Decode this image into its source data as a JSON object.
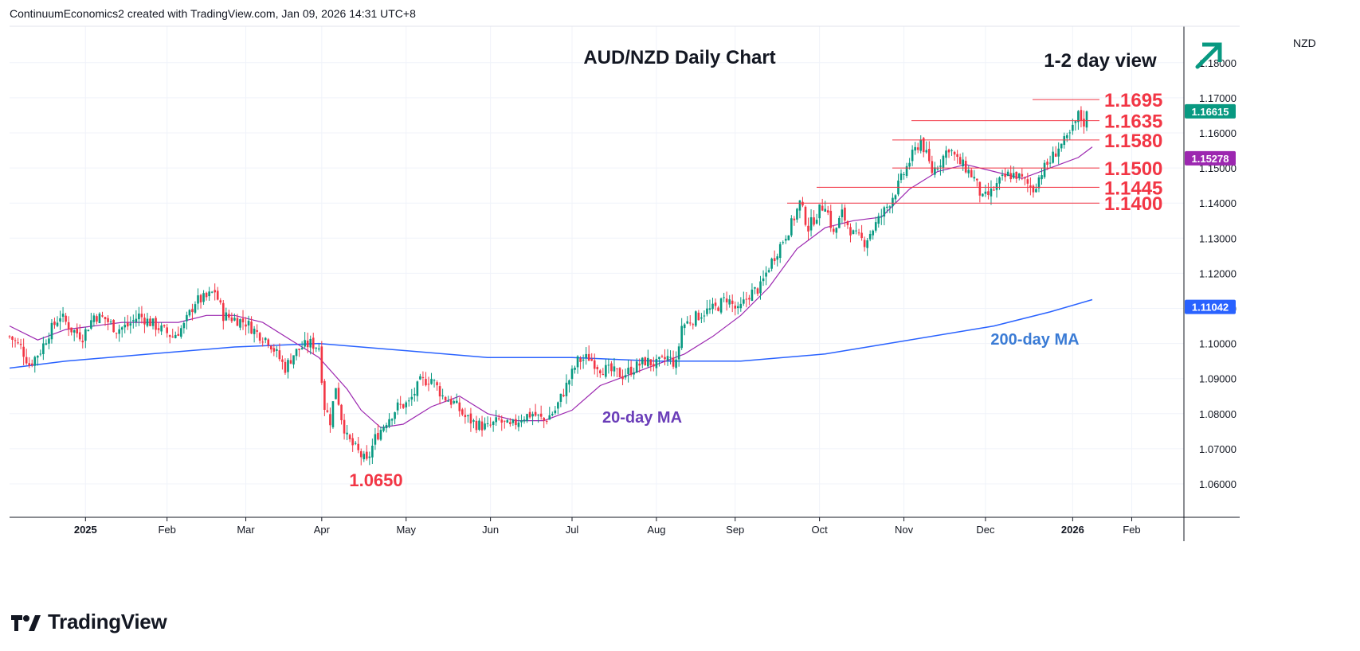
{
  "header": {
    "credit": "ContinuumEconomics2 created with TradingView.com, Jan 09, 2026 14:31 UTC+8"
  },
  "footer": {
    "brand": "TradingView"
  },
  "colors": {
    "up": "#089981",
    "down": "#f23645",
    "ma20": "#9c27b0",
    "ma200": "#2962ff",
    "level_text": "#f23645",
    "arrow": "#089981"
  },
  "chart_data": {
    "type": "candlestick",
    "title": "AUD/NZD Daily Chart",
    "view_label": "1-2 day view",
    "view_direction": "up",
    "currency": "NZD",
    "ylim": [
      1.05,
      1.185
    ],
    "y_ticks": [
      "1.06000",
      "1.07000",
      "1.08000",
      "1.09000",
      "1.10000",
      "1.11000",
      "1.12000",
      "1.13000",
      "1.14000",
      "1.15000",
      "1.16000",
      "1.17000",
      "1.18000"
    ],
    "x_ticks": [
      "2025",
      "Feb",
      "Mar",
      "Apr",
      "May",
      "Jun",
      "Jul",
      "Aug",
      "Sep",
      "Oct",
      "Nov",
      "Dec",
      "2026",
      "Feb"
    ],
    "price_tags": [
      {
        "label": "1.16615",
        "value": 1.16615,
        "color": "#089981"
      },
      {
        "label": "1.15278",
        "value": 1.15278,
        "color": "#9c27b0"
      },
      {
        "label": "1.11042",
        "value": 1.11042,
        "color": "#2962ff"
      }
    ],
    "levels": [
      {
        "label": "1.1695",
        "value": 1.1695
      },
      {
        "label": "1.1635",
        "value": 1.1635
      },
      {
        "label": "1.1580",
        "value": 1.158
      },
      {
        "label": "1.1500",
        "value": 1.15
      },
      {
        "label": "1.1445",
        "value": 1.1445
      },
      {
        "label": "1.1400",
        "value": 1.14
      }
    ],
    "low_annotation": {
      "label": "1.0650",
      "value": 1.065
    },
    "ma_labels": {
      "ma20": "20-day MA",
      "ma200": "200-day MA"
    },
    "close_path": [
      [
        0,
        1.102
      ],
      [
        4,
        1.099
      ],
      [
        7,
        1.094
      ],
      [
        11,
        1.098
      ],
      [
        14,
        1.103
      ],
      [
        18,
        1.108
      ],
      [
        22,
        1.104
      ],
      [
        26,
        1.102
      ],
      [
        30,
        1.108
      ],
      [
        34,
        1.107
      ],
      [
        38,
        1.104
      ],
      [
        42,
        1.105
      ],
      [
        46,
        1.108
      ],
      [
        50,
        1.106
      ],
      [
        54,
        1.104
      ],
      [
        58,
        1.102
      ],
      [
        62,
        1.105
      ],
      [
        66,
        1.112
      ],
      [
        70,
        1.113
      ],
      [
        73,
        1.115
      ],
      [
        76,
        1.108
      ],
      [
        80,
        1.107
      ],
      [
        84,
        1.106
      ],
      [
        88,
        1.103
      ],
      [
        92,
        1.101
      ],
      [
        95,
        1.097
      ],
      [
        98,
        1.093
      ],
      [
        101,
        1.097
      ],
      [
        104,
        1.099
      ],
      [
        107,
        1.1
      ],
      [
        110,
        1.099
      ],
      [
        112,
        1.082
      ],
      [
        114,
        1.078
      ],
      [
        116,
        1.088
      ],
      [
        118,
        1.079
      ],
      [
        120,
        1.073
      ],
      [
        122,
        1.071
      ],
      [
        124,
        1.069
      ],
      [
        127,
        1.066
      ],
      [
        130,
        1.073
      ],
      [
        134,
        1.078
      ],
      [
        138,
        1.082
      ],
      [
        142,
        1.083
      ],
      [
        146,
        1.089
      ],
      [
        150,
        1.09
      ],
      [
        154,
        1.085
      ],
      [
        158,
        1.083
      ],
      [
        162,
        1.079
      ],
      [
        166,
        1.077
      ],
      [
        170,
        1.076
      ],
      [
        174,
        1.078
      ],
      [
        178,
        1.076
      ],
      [
        182,
        1.079
      ],
      [
        186,
        1.08
      ],
      [
        190,
        1.078
      ],
      [
        194,
        1.081
      ],
      [
        198,
        1.088
      ],
      [
        202,
        1.095
      ],
      [
        206,
        1.096
      ],
      [
        210,
        1.093
      ],
      [
        214,
        1.092
      ],
      [
        218,
        1.091
      ],
      [
        222,
        1.093
      ],
      [
        226,
        1.095
      ],
      [
        230,
        1.094
      ],
      [
        234,
        1.096
      ],
      [
        237,
        1.094
      ],
      [
        239,
        1.105
      ],
      [
        243,
        1.107
      ],
      [
        247,
        1.109
      ],
      [
        251,
        1.11
      ],
      [
        255,
        1.113
      ],
      [
        259,
        1.109
      ],
      [
        263,
        1.114
      ],
      [
        267,
        1.116
      ],
      [
        270,
        1.122
      ],
      [
        274,
        1.128
      ],
      [
        278,
        1.134
      ],
      [
        281,
        1.14
      ],
      [
        284,
        1.133
      ],
      [
        288,
        1.138
      ],
      [
        290,
        1.14
      ],
      [
        293,
        1.131
      ],
      [
        296,
        1.137
      ],
      [
        300,
        1.131
      ],
      [
        304,
        1.129
      ],
      [
        308,
        1.134
      ],
      [
        312,
        1.139
      ],
      [
        316,
        1.145
      ],
      [
        320,
        1.152
      ],
      [
        324,
        1.158
      ],
      [
        328,
        1.149
      ],
      [
        331,
        1.152
      ],
      [
        334,
        1.156
      ],
      [
        337,
        1.152
      ],
      [
        340,
        1.15
      ],
      [
        343,
        1.147
      ],
      [
        346,
        1.141
      ],
      [
        349,
        1.143
      ],
      [
        352,
        1.146
      ],
      [
        355,
        1.148
      ],
      [
        358,
        1.148
      ],
      [
        361,
        1.146
      ],
      [
        364,
        1.144
      ],
      [
        367,
        1.149
      ],
      [
        370,
        1.152
      ],
      [
        373,
        1.156
      ],
      [
        376,
        1.158
      ],
      [
        378,
        1.161
      ],
      [
        380,
        1.165
      ],
      [
        382,
        1.163
      ],
      [
        383,
        1.166
      ]
    ],
    "ma20_path": [
      [
        0,
        1.105
      ],
      [
        10,
        1.101
      ],
      [
        20,
        1.104
      ],
      [
        30,
        1.105
      ],
      [
        40,
        1.106
      ],
      [
        50,
        1.106
      ],
      [
        60,
        1.106
      ],
      [
        70,
        1.108
      ],
      [
        80,
        1.108
      ],
      [
        90,
        1.106
      ],
      [
        100,
        1.101
      ],
      [
        110,
        1.096
      ],
      [
        120,
        1.087
      ],
      [
        125,
        1.081
      ],
      [
        132,
        1.076
      ],
      [
        140,
        1.077
      ],
      [
        150,
        1.082
      ],
      [
        160,
        1.085
      ],
      [
        170,
        1.08
      ],
      [
        180,
        1.078
      ],
      [
        190,
        1.078
      ],
      [
        200,
        1.081
      ],
      [
        210,
        1.088
      ],
      [
        220,
        1.091
      ],
      [
        230,
        1.094
      ],
      [
        240,
        1.097
      ],
      [
        250,
        1.102
      ],
      [
        260,
        1.108
      ],
      [
        270,
        1.116
      ],
      [
        280,
        1.127
      ],
      [
        290,
        1.133
      ],
      [
        300,
        1.135
      ],
      [
        310,
        1.136
      ],
      [
        320,
        1.144
      ],
      [
        330,
        1.149
      ],
      [
        340,
        1.151
      ],
      [
        350,
        1.149
      ],
      [
        360,
        1.147
      ],
      [
        370,
        1.15
      ],
      [
        380,
        1.153
      ],
      [
        385,
        1.156
      ]
    ],
    "ma200_path": [
      [
        0,
        1.093
      ],
      [
        20,
        1.095
      ],
      [
        50,
        1.097
      ],
      [
        80,
        1.099
      ],
      [
        110,
        1.1
      ],
      [
        140,
        1.098
      ],
      [
        170,
        1.096
      ],
      [
        200,
        1.096
      ],
      [
        230,
        1.095
      ],
      [
        260,
        1.095
      ],
      [
        290,
        1.097
      ],
      [
        320,
        1.101
      ],
      [
        350,
        1.105
      ],
      [
        370,
        1.109
      ],
      [
        385,
        1.1125
      ]
    ]
  }
}
